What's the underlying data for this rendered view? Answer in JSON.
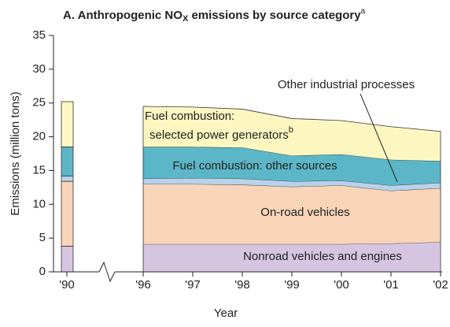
{
  "chart_data": {
    "type": "stacked_area",
    "title_parts": [
      "A. Anthropogenic NO",
      "X",
      " emissions by source category",
      "a"
    ],
    "x_label": "Year",
    "y_label": "Emissions (million tons)",
    "x": [
      1990,
      1996,
      1997,
      1998,
      1999,
      2000,
      2001,
      2002
    ],
    "xticks": [
      {
        "value": 1990,
        "label": "'90"
      },
      {
        "value": 1996,
        "label": "'96"
      },
      {
        "value": 1997,
        "label": "'97"
      },
      {
        "value": 1998,
        "label": "'98"
      },
      {
        "value": 1999,
        "label": "'99"
      },
      {
        "value": 2000,
        "label": "'00"
      },
      {
        "value": 2001,
        "label": "'01"
      },
      {
        "value": 2002,
        "label": "'02"
      }
    ],
    "ylim": [
      0,
      35
    ],
    "yticks": [
      0,
      5,
      10,
      15,
      20,
      25,
      30,
      35
    ],
    "series": [
      {
        "label": "Nonroad vehicles and engines",
        "color": "#d6c5e1",
        "values": [
          3.8,
          4.1,
          4.1,
          4.1,
          4.1,
          4.1,
          4.2,
          4.4
        ]
      },
      {
        "label": "On-road vehicles",
        "color": "#f8d4b8",
        "values": [
          9.6,
          8.9,
          8.9,
          8.8,
          8.5,
          8.7,
          7.8,
          8.0
        ]
      },
      {
        "label": "Other industrial processes",
        "color": "#b9d2ea",
        "values": [
          0.8,
          0.8,
          0.9,
          0.9,
          0.8,
          0.7,
          0.8,
          0.8
        ]
      },
      {
        "label": "Fuel combustion: other sources",
        "color": "#5bb6c7",
        "values": [
          4.3,
          4.7,
          4.6,
          4.6,
          3.8,
          3.9,
          3.8,
          3.2
        ]
      },
      {
        "label_lines": [
          "Fuel combustion:",
          "selected power generators"
        ],
        "label_note": "b",
        "color": "#fcf6c1",
        "values": [
          6.7,
          6.0,
          5.9,
          5.7,
          5.5,
          5.0,
          4.9,
          4.4
        ]
      }
    ]
  }
}
